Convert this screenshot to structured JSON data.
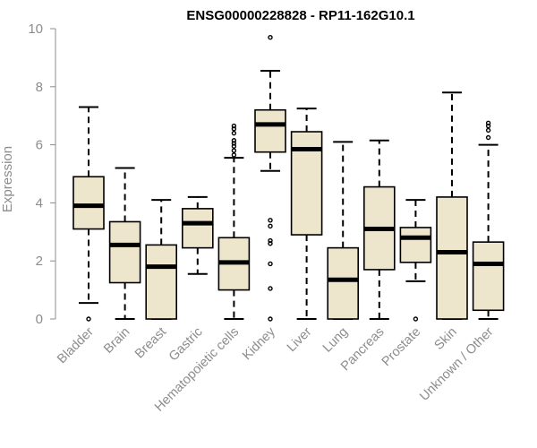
{
  "chart_data": {
    "type": "boxplot",
    "title": "ENSG00000228828 - RP11-162G10.1",
    "xlabel": "",
    "ylabel": "Expression",
    "ylim": [
      0,
      10
    ],
    "yticks": [
      0,
      2,
      4,
      6,
      8,
      10
    ],
    "box_fill": "#ede6cd",
    "stroke": "#000000",
    "categories": [
      "Bladder",
      "Brain",
      "Breast",
      "Gastric",
      "Hematopoietic cells",
      "Kidney",
      "Liver",
      "Lung",
      "Pancreas",
      "Prostate",
      "Skin",
      "Unknown / Other"
    ],
    "boxes": [
      {
        "whislo": 0.55,
        "q1": 3.1,
        "med": 3.9,
        "q3": 4.9,
        "whishi": 7.3,
        "fliers": [
          0.0
        ]
      },
      {
        "whislo": 0.0,
        "q1": 1.25,
        "med": 2.55,
        "q3": 3.35,
        "whishi": 5.2,
        "fliers": []
      },
      {
        "whislo": 0.0,
        "q1": 0.0,
        "med": 1.8,
        "q3": 2.55,
        "whishi": 4.1,
        "fliers": []
      },
      {
        "whislo": 1.55,
        "q1": 2.45,
        "med": 3.3,
        "q3": 3.8,
        "whishi": 4.2,
        "fliers": []
      },
      {
        "whislo": 0.0,
        "q1": 1.0,
        "med": 1.95,
        "q3": 2.8,
        "whishi": 5.55,
        "fliers": [
          5.65,
          5.8,
          5.95,
          6.05,
          6.15,
          6.4,
          6.55,
          6.65
        ]
      },
      {
        "whislo": 5.1,
        "q1": 5.75,
        "med": 6.7,
        "q3": 7.2,
        "whishi": 8.55,
        "fliers": [
          9.7,
          3.4,
          3.2,
          2.7,
          2.6,
          1.9,
          1.05,
          0.0
        ]
      },
      {
        "whislo": 0.0,
        "q1": 2.9,
        "med": 5.85,
        "q3": 6.45,
        "whishi": 7.25,
        "fliers": []
      },
      {
        "whislo": 0.0,
        "q1": 0.0,
        "med": 1.35,
        "q3": 2.45,
        "whishi": 6.1,
        "fliers": []
      },
      {
        "whislo": 0.0,
        "q1": 1.7,
        "med": 3.1,
        "q3": 4.55,
        "whishi": 6.15,
        "fliers": []
      },
      {
        "whislo": 1.3,
        "q1": 1.95,
        "med": 2.8,
        "q3": 3.15,
        "whishi": 4.1,
        "fliers": [
          0.0
        ]
      },
      {
        "whislo": 0.0,
        "q1": 0.0,
        "med": 2.3,
        "q3": 4.2,
        "whishi": 7.8,
        "fliers": []
      },
      {
        "whislo": 0.0,
        "q1": 0.3,
        "med": 1.9,
        "q3": 2.65,
        "whishi": 6.0,
        "fliers": [
          6.25,
          6.5,
          6.65,
          6.75
        ]
      }
    ]
  }
}
